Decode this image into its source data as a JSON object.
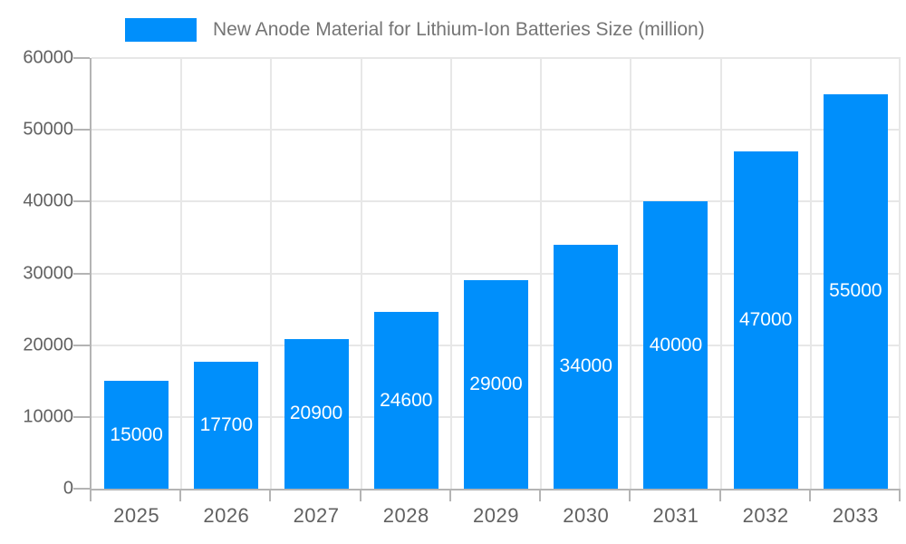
{
  "chart_data": {
    "type": "bar",
    "title": "New Anode Material for Lithium-Ion Batteries Size (million)",
    "categories": [
      "2025",
      "2026",
      "2027",
      "2028",
      "2029",
      "2030",
      "2031",
      "2032",
      "2033"
    ],
    "values": [
      15000,
      17700,
      20900,
      24600,
      29000,
      34000,
      40000,
      47000,
      55000
    ],
    "series": [
      {
        "name": "New Anode Material for Lithium-Ion Batteries Size (million)",
        "values": [
          15000,
          17700,
          20900,
          24600,
          29000,
          34000,
          40000,
          47000,
          55000
        ]
      }
    ],
    "xlabel": "",
    "ylabel": "",
    "ylim": [
      0,
      60000
    ],
    "y_ticks": [
      0,
      10000,
      20000,
      30000,
      40000,
      50000,
      60000
    ],
    "grid": true,
    "legend_position": "top",
    "bar_color": "#008FFB",
    "value_label_color": "#FFFFFF"
  },
  "colors": {
    "background": "#FFFFFF",
    "axis_line": "#B4B4B4",
    "gridline": "#E7E7E7",
    "axis_text": "#616161",
    "legend_text": "#757575"
  }
}
